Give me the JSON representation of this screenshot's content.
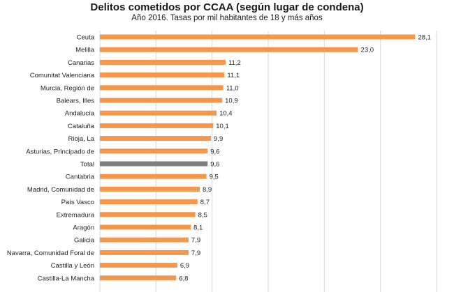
{
  "chart_data": {
    "type": "bar",
    "orientation": "horizontal",
    "title": "Delitos cometidos por  CCAA (según lugar de condena)",
    "subtitle": "Año 2016. Tasas por mil habitantes de 18 y más años",
    "categories": [
      "Ceuta",
      "Melilla",
      "Canarias",
      "Comunitat Valenciana",
      "Murcia, Región de",
      "Balears, Illes",
      "Andalucía",
      "Cataluña",
      "Rioja, La",
      "Asturias, Principado de",
      "Total",
      "Cantabria",
      "Madrid, Comunidad de",
      "País Vasco",
      "Extremadura",
      "Aragón",
      "Galicia",
      "Navarra, Comunidad Foral de",
      "Castilla y León",
      "Castilla-La Mancha"
    ],
    "values": [
      28.1,
      23.0,
      11.2,
      11.1,
      11.0,
      10.9,
      10.4,
      10.1,
      9.9,
      9.6,
      9.6,
      9.5,
      8.9,
      8.7,
      8.5,
      8.1,
      7.9,
      7.9,
      6.9,
      6.8
    ],
    "value_labels": [
      "28,1",
      "23,0",
      "11,2",
      "11,1",
      "11,0",
      "10,9",
      "10,4",
      "10,1",
      "9,9",
      "9,6",
      "9,6",
      "9,5",
      "8,9",
      "8,7",
      "8,5",
      "8,1",
      "7,9",
      "7,9",
      "6,9",
      "6,8"
    ],
    "xlim": [
      0,
      30
    ],
    "grid": true,
    "legend": "none",
    "colors": {
      "bar": "#f4974a",
      "highlight": "#7f7f7f",
      "grid": "#d9d9d9"
    },
    "highlight_category": "Total"
  }
}
